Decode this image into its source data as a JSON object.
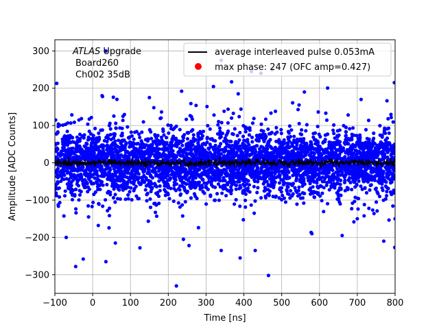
{
  "chart_data": {
    "type": "scatter",
    "title": "",
    "xlabel": "Time [ns]",
    "ylabel": "Amplitude [ADC Counts]",
    "xlim": [
      -100,
      800
    ],
    "ylim": [
      -350,
      330
    ],
    "x_ticks": [
      -100,
      0,
      100,
      200,
      300,
      400,
      500,
      600,
      700,
      800
    ],
    "y_ticks": [
      -300,
      -200,
      -100,
      0,
      100,
      200,
      300
    ],
    "x_tick_labels": [
      "−100",
      "0",
      "100",
      "200",
      "300",
      "400",
      "500",
      "600",
      "700",
      "800"
    ],
    "y_tick_labels": [
      "−300",
      "−200",
      "−100",
      "0",
      "100",
      "200",
      "300"
    ],
    "grid": true,
    "legend_position": "top-right",
    "annotation": {
      "experiment": "ATLAS",
      "experiment_suffix": " Upgrade",
      "line2": "Board260",
      "line3": "Ch002 35dB"
    },
    "series": [
      {
        "name": "average interleaved pulse 0.053mA",
        "kind": "line",
        "color": "#000000",
        "x_range": [
          -100,
          800
        ],
        "mean": 0,
        "noise_sd": 5
      },
      {
        "name": "max phase: 247 (OFC amp=0.427)",
        "kind": "scatter",
        "color": "#ff0000",
        "points": []
      },
      {
        "name": "",
        "kind": "scatter",
        "color": "#0000ff",
        "x_range": [
          -100,
          800
        ],
        "center": 0,
        "dense_band": [
          -90,
          90
        ],
        "outliers": [
          {
            "x": -95,
            "y": 213
          },
          {
            "x": 35,
            "y": 300
          },
          {
            "x": 340,
            "y": 275
          },
          {
            "x": 420,
            "y": 245
          },
          {
            "x": 445,
            "y": 240
          },
          {
            "x": 475,
            "y": 250
          },
          {
            "x": 798,
            "y": 215
          },
          {
            "x": 25,
            "y": 180
          },
          {
            "x": 385,
            "y": 185
          },
          {
            "x": 560,
            "y": 190
          },
          {
            "x": 710,
            "y": 170
          },
          {
            "x": 150,
            "y": 175
          },
          {
            "x": -45,
            "y": -278
          },
          {
            "x": 35,
            "y": -265
          },
          {
            "x": 465,
            "y": -302
          },
          {
            "x": 390,
            "y": -255
          },
          {
            "x": -25,
            "y": -258
          },
          {
            "x": 125,
            "y": -228
          },
          {
            "x": 340,
            "y": -235
          },
          {
            "x": 430,
            "y": -235
          },
          {
            "x": 770,
            "y": -210
          },
          {
            "x": 60,
            "y": -215
          },
          {
            "x": -70,
            "y": -200
          },
          {
            "x": 660,
            "y": -195
          },
          {
            "x": 240,
            "y": -205
          },
          {
            "x": 580,
            "y": -190
          },
          {
            "x": 800,
            "y": -150
          },
          {
            "x": 700,
            "y": -150
          }
        ]
      }
    ]
  }
}
